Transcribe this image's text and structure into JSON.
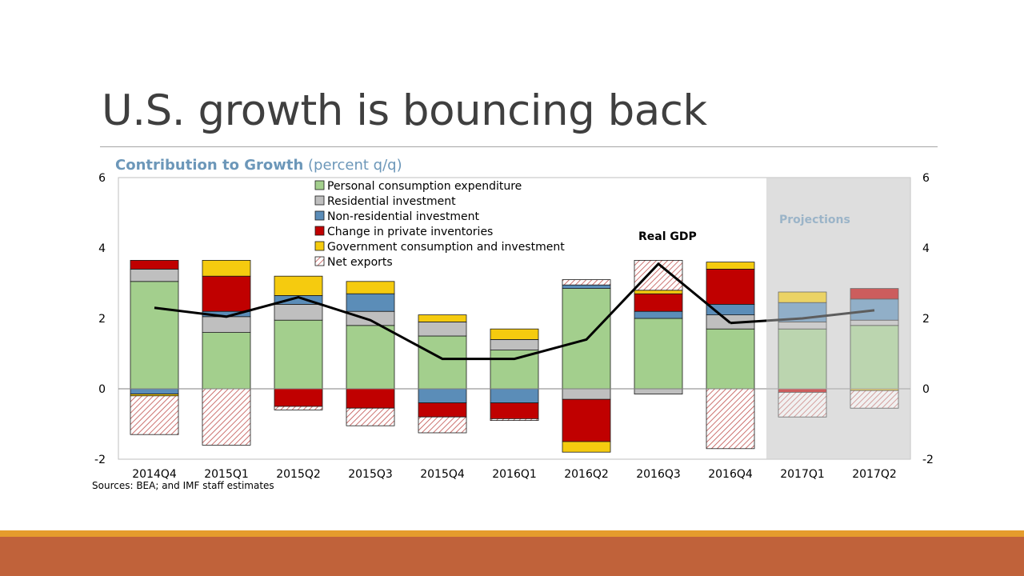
{
  "slide": {
    "title": "U.S. growth is bouncing back",
    "sources": "Sources: BEA; and IMF staff estimates"
  },
  "chart_data": {
    "type": "bar",
    "stacked": true,
    "title": "Contribution to Growth",
    "units": "(percent q/q)",
    "categories": [
      "2014Q4",
      "2015Q1",
      "2015Q2",
      "2015Q3",
      "2015Q4",
      "2016Q1",
      "2016Q2",
      "2016Q3",
      "2016Q4",
      "2017Q1",
      "2017Q2"
    ],
    "ylim": [
      -2,
      6
    ],
    "yticks": [
      -2,
      0,
      2,
      4,
      6
    ],
    "projection_start": "2017Q1",
    "projection_label": "Projections",
    "line_label": "Real GDP",
    "legend_position": "top-center",
    "series": [
      {
        "name": "Personal consumption expenditure",
        "color": "#a3cf8d",
        "pattern": "solid",
        "values": [
          3.05,
          1.6,
          1.95,
          1.8,
          1.5,
          1.1,
          2.85,
          2.0,
          1.7,
          1.7,
          1.8
        ]
      },
      {
        "name": "Residential investment",
        "color": "#bfbfbf",
        "pattern": "solid",
        "values": [
          0.35,
          0.45,
          0.45,
          0.4,
          0.4,
          0.3,
          -0.3,
          -0.15,
          0.4,
          0.2,
          0.15
        ]
      },
      {
        "name": "Non-residential investment",
        "color": "#5b8db8",
        "pattern": "solid",
        "values": [
          -0.15,
          0.15,
          0.25,
          0.5,
          -0.4,
          -0.4,
          0.1,
          0.2,
          0.3,
          0.55,
          0.6
        ]
      },
      {
        "name": "Change in private inventories",
        "color": "#c00000",
        "pattern": "solid",
        "values": [
          0.25,
          1.0,
          -0.5,
          -0.55,
          -0.4,
          -0.45,
          -1.2,
          0.5,
          1.0,
          -0.1,
          0.3
        ]
      },
      {
        "name": "Government consumption and investment",
        "color": "#f5cb0f",
        "pattern": "solid",
        "values": [
          -0.05,
          0.45,
          0.55,
          0.35,
          0.2,
          0.3,
          -0.3,
          0.1,
          0.2,
          0.3,
          -0.05
        ]
      },
      {
        "name": "Net exports",
        "color": "#c0504d",
        "pattern": "hatch",
        "values": [
          -1.1,
          -1.6,
          -0.1,
          -0.5,
          -0.45,
          -0.05,
          0.15,
          0.85,
          -1.7,
          -0.7,
          -0.5
        ]
      }
    ],
    "real_gdp": [
      2.3,
      2.05,
      2.6,
      1.95,
      0.85,
      0.85,
      1.4,
      3.55,
      1.87,
      2.0,
      2.23
    ]
  }
}
